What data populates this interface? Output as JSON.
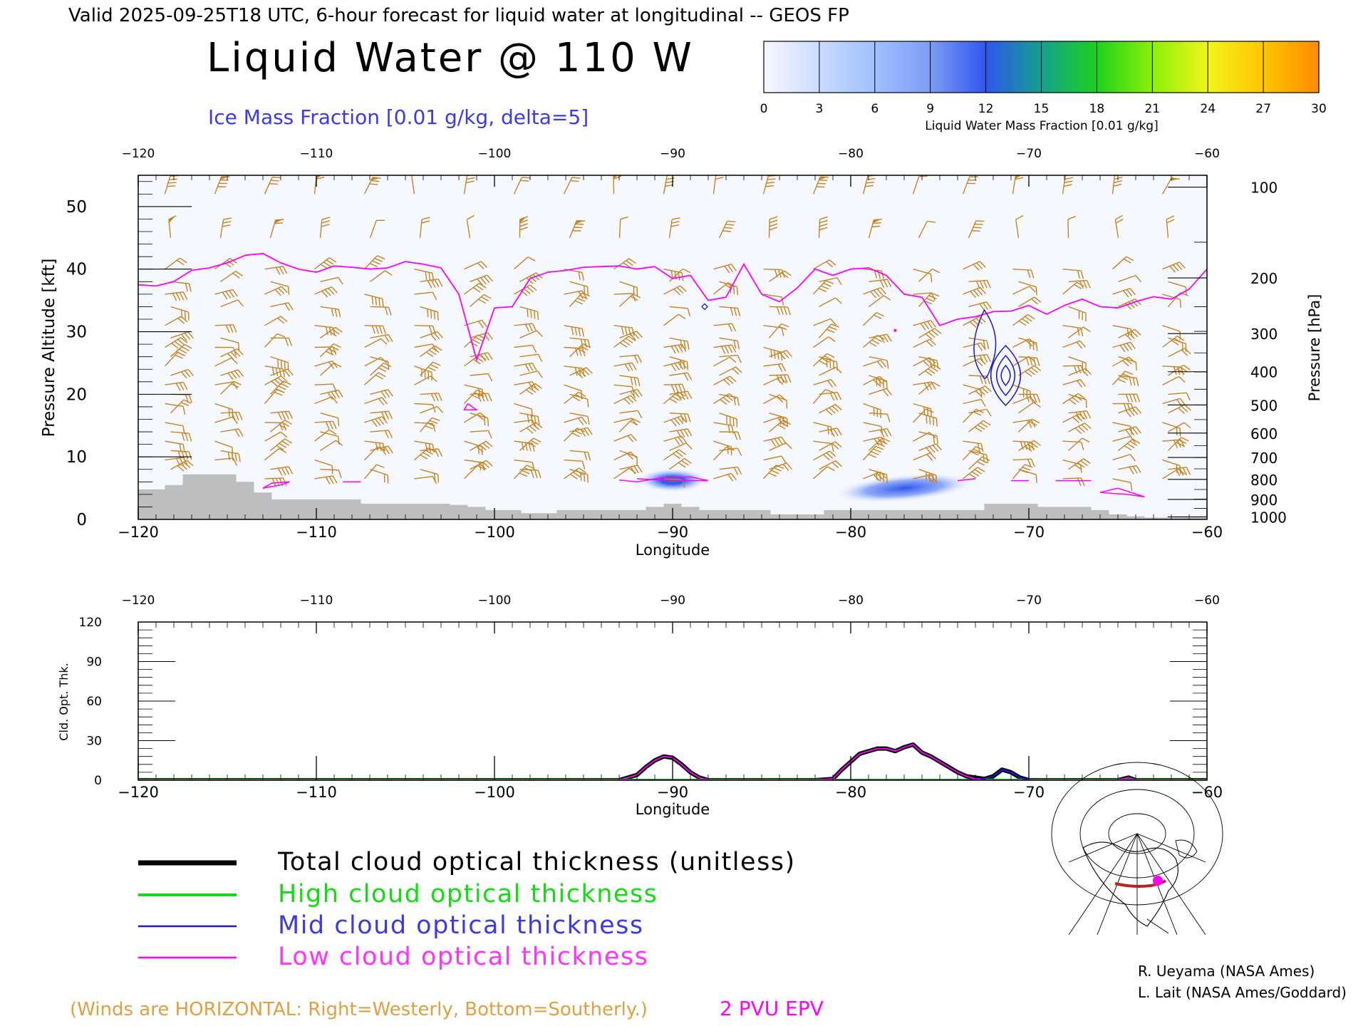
{
  "header": {
    "valid_line": "Valid 2025-09-25T18 UTC, 6-hour forecast for liquid water at longitudinal -- GEOS FP",
    "title": "Liquid Water @ 110 W",
    "contour_label": "Ice Mass Fraction [0.01 g/kg, delta=5]"
  },
  "colorbar": {
    "label": "Liquid Water Mass Fraction [0.01 g/kg]",
    "ticks": [
      "0",
      "3",
      "6",
      "9",
      "12",
      "15",
      "18",
      "21",
      "24",
      "27",
      "30"
    ],
    "colors": [
      "#f6f8ff",
      "#c9dcff",
      "#9fbfff",
      "#7d9cf6",
      "#2f56ee",
      "#14a08c",
      "#1cd21c",
      "#8cf00a",
      "#f0f51a",
      "#ffc400",
      "#ff8c00",
      "#ff2a00"
    ]
  },
  "chart_data": [
    {
      "type": "heatmap",
      "description_id": "cross-section",
      "xlabel": "Longitude",
      "ylabel": "Pressure Altitude [kft]",
      "ylabel_right": "Pressure [hPa]",
      "xlim": [
        -120,
        -60
      ],
      "ylim": [
        0,
        55
      ],
      "x_ticks": [
        "−120",
        "−110",
        "−100",
        "−90",
        "−80",
        "−70",
        "−60"
      ],
      "x_tick_values": [
        -120,
        -110,
        -100,
        -90,
        -80,
        -70,
        -60
      ],
      "y_ticks": [
        "0",
        "10",
        "20",
        "30",
        "40",
        "50"
      ],
      "y_tick_values": [
        0,
        10,
        20,
        30,
        40,
        50
      ],
      "pressure_ticks": [
        "100",
        "200",
        "300",
        "400",
        "500",
        "600",
        "700",
        "800",
        "900",
        "1000"
      ],
      "pressure_tick_kft": [
        53.1,
        38.6,
        29.7,
        23.6,
        18.3,
        13.8,
        9.9,
        6.4,
        3.2,
        0.4
      ],
      "liquid_water_blobs": [
        {
          "lon_min": -92,
          "lon_max": -88,
          "alt_min": 5,
          "alt_max": 7.5,
          "peak": 14
        },
        {
          "lon_min": -81,
          "lon_max": -73,
          "alt_min": 3.5,
          "alt_max": 6.5,
          "peak": 10
        }
      ],
      "epv_2pvu_line": {
        "lon": [
          -120,
          -119,
          -118,
          -117,
          -116,
          -115,
          -114,
          -113,
          -112,
          -111,
          -110,
          -109,
          -108,
          -107,
          -106,
          -105,
          -104,
          -103,
          -102,
          -101,
          -100,
          -99,
          -98,
          -97,
          -96,
          -95,
          -94,
          -93,
          -92,
          -91,
          -90,
          -89,
          -88,
          -87,
          -86,
          -85,
          -84,
          -83,
          -82,
          -81,
          -80,
          -79,
          -78,
          -77,
          -76,
          -75,
          -74,
          -73,
          -72,
          -71,
          -70,
          -69,
          -68,
          -67,
          -66,
          -65,
          -64,
          -63,
          -62,
          -61,
          -60
        ],
        "kft": [
          37.5,
          37.3,
          38,
          39.8,
          40.2,
          41,
          42.2,
          42.5,
          41,
          40,
          39.5,
          40.5,
          40.3,
          40,
          40.2,
          41.2,
          40.8,
          40.2,
          36,
          25.5,
          33.8,
          34,
          38.5,
          39.5,
          39.8,
          40.3,
          40.4,
          40.5,
          40,
          40.4,
          38.5,
          39,
          35,
          35.5,
          40.8,
          36,
          34.8,
          37,
          40,
          39,
          40,
          40.2,
          39,
          36,
          35.5,
          31,
          32,
          32.4,
          33.2,
          33.3,
          34.2,
          32.8,
          34.2,
          35.2,
          34,
          33.8,
          34.8,
          35.6,
          35.2,
          36.8,
          40
        ]
      },
      "ice_contours": [
        {
          "lon": -72.5,
          "alt_kft": 28,
          "levels": 1
        },
        {
          "lon": -71.3,
          "alt_kft": 23,
          "levels": 3
        }
      ],
      "terrain_kft": {
        "lon": [
          -120,
          -119,
          -118,
          -117,
          -116,
          -115,
          -114,
          -113,
          -112,
          -111,
          -110,
          -109,
          -108,
          -107,
          -106,
          -105,
          -104,
          -103,
          -102,
          -101,
          -100,
          -99,
          -98,
          -97,
          -96,
          -95,
          -94,
          -93,
          -92,
          -91,
          -90,
          -89,
          -88,
          -87,
          -86,
          -85,
          -84,
          -83,
          -82,
          -81,
          -80,
          -79,
          -78,
          -77,
          -76,
          -75,
          -74,
          -73,
          -72,
          -71,
          -70,
          -69,
          -68,
          -67,
          -66,
          -65,
          -64,
          -63,
          -62,
          -61,
          -60
        ],
        "kft": [
          4.8,
          4.8,
          5.5,
          7.2,
          7.2,
          7.2,
          6,
          4.3,
          3.2,
          3.2,
          3.2,
          3.2,
          3.2,
          2.5,
          2.5,
          2.5,
          2.5,
          2.5,
          2.3,
          2,
          1.5,
          1.5,
          1,
          1,
          1.5,
          1.5,
          1.5,
          1.5,
          1.5,
          2,
          2.5,
          2,
          1.5,
          1.5,
          1.5,
          1.5,
          0.8,
          0.8,
          0.8,
          1.5,
          1.5,
          1.5,
          1.5,
          1.5,
          1.5,
          1.5,
          1.5,
          1.5,
          2.5,
          2.5,
          2.5,
          2,
          2,
          2,
          1.5,
          0.8,
          0.5,
          0.3,
          0.3,
          0.3,
          0.3
        ]
      },
      "wind_barbs_note": "(Winds are HORIZONTAL: Right=Westerly, Bottom=Southerly.)"
    },
    {
      "type": "line",
      "description_id": "cloud-optical-thickness",
      "xlabel": "Longitude",
      "ylabel": "Cld. Opt. Thk.",
      "xlim": [
        -120,
        -60
      ],
      "ylim": [
        0,
        120
      ],
      "x_ticks": [
        "−120",
        "−110",
        "−100",
        "−90",
        "−80",
        "−70",
        "−60"
      ],
      "x_tick_values": [
        -120,
        -110,
        -100,
        -90,
        -80,
        -70,
        -60
      ],
      "y_ticks": [
        "0",
        "30",
        "60",
        "90",
        "120"
      ],
      "y_tick_values": [
        0,
        30,
        60,
        90,
        120
      ],
      "x": [
        -120,
        -93,
        -92,
        -91.5,
        -91,
        -90.5,
        -90,
        -89.5,
        -89,
        -88.5,
        -88,
        -82,
        -81,
        -80.5,
        -80,
        -79.5,
        -79,
        -78.5,
        -78,
        -77.5,
        -77,
        -76.5,
        -76,
        -75.5,
        -75,
        -74.5,
        -74,
        -73.5,
        -73,
        -72.5,
        -72,
        -71.5,
        -71,
        -70.5,
        -70,
        -65,
        -64.7,
        -64.4,
        -64,
        -60
      ],
      "series": [
        {
          "name": "Total cloud optical thickness (unitless)",
          "color": "#000000",
          "values": [
            0,
            0,
            4,
            10,
            15,
            18,
            17,
            12,
            6,
            2,
            0,
            0,
            1,
            8,
            14,
            20,
            22,
            24,
            24,
            22,
            25,
            27,
            21,
            18,
            14,
            10,
            6,
            3,
            2,
            1,
            3,
            8,
            6,
            2,
            0,
            0,
            1,
            2,
            0,
            0
          ]
        },
        {
          "name": "High cloud optical thickness",
          "color": "#11dd11",
          "values": [
            0,
            0,
            0,
            0,
            0,
            0,
            0,
            0,
            0,
            0,
            0,
            0,
            0,
            0,
            0,
            0,
            0,
            0,
            0,
            0,
            0,
            0,
            0,
            0,
            0,
            0,
            0,
            0,
            0,
            0,
            0,
            0,
            0,
            0,
            0,
            0,
            0,
            0,
            0,
            0
          ]
        },
        {
          "name": "Mid cloud optical thickness",
          "color": "#1a1acc",
          "values": [
            0,
            0,
            0,
            0,
            0,
            0,
            0,
            0,
            0,
            0,
            0,
            0,
            0,
            0,
            0,
            0,
            0,
            0,
            0,
            0,
            0,
            0,
            0,
            0,
            0,
            0,
            0,
            0,
            1,
            1,
            3,
            8,
            6,
            2,
            0,
            0,
            0,
            0,
            0,
            0
          ]
        },
        {
          "name": "Low cloud optical thickness",
          "color": "#ff00ff",
          "values": [
            0,
            0,
            4,
            10,
            15,
            18,
            17,
            12,
            6,
            2,
            0,
            0,
            1,
            8,
            14,
            20,
            22,
            24,
            24,
            22,
            25,
            27,
            21,
            18,
            14,
            10,
            6,
            3,
            1,
            0,
            0,
            0,
            0,
            0,
            0,
            0,
            1,
            2,
            0,
            0
          ]
        }
      ]
    }
  ],
  "legend": {
    "items": [
      {
        "label": "Total cloud optical thickness (unitless)",
        "color": "#000000"
      },
      {
        "label": "High cloud optical thickness",
        "color": "#11dd11"
      },
      {
        "label": "Mid cloud optical thickness",
        "color": "#1a1acc"
      },
      {
        "label": "Low cloud optical thickness",
        "color": "#ff00ff"
      }
    ]
  },
  "footer": {
    "winds_note": "(Winds are HORIZONTAL: Right=Westerly, Bottom=Southerly.)",
    "epv_label": "2 PVU EPV",
    "credit_1": "R. Ueyama (NASA Ames)",
    "credit_2": "L. Lait (NASA Ames/Goddard)"
  },
  "colors": {
    "barb": "#c8841c",
    "epv": "#ff00ff",
    "ice": "#1a1acc",
    "terrain": "#bebebe",
    "plot_bg": "#f6f8ff",
    "note_orange": "#e0a040"
  }
}
